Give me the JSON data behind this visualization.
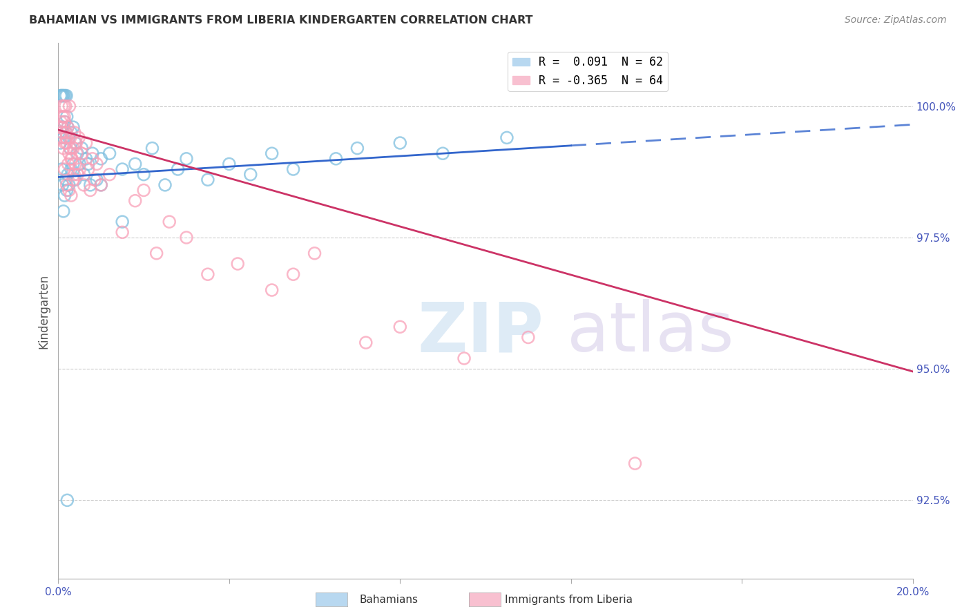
{
  "title": "BAHAMIAN VS IMMIGRANTS FROM LIBERIA KINDERGARTEN CORRELATION CHART",
  "source": "Source: ZipAtlas.com",
  "ylabel": "Kindergarten",
  "ytick_values": [
    92.5,
    95.0,
    97.5,
    100.0
  ],
  "xmin": 0.0,
  "xmax": 20.0,
  "ymin": 91.0,
  "ymax": 101.2,
  "legend_blue": "R =  0.091  N = 62",
  "legend_pink": "R = -0.365  N = 64",
  "blue_color": "#7fbfdf",
  "pink_color": "#f9a0b8",
  "trend_blue_color": "#3366cc",
  "trend_pink_color": "#cc3366",
  "background_color": "#ffffff",
  "blue_trend_x0": 0.0,
  "blue_trend_y0": 98.65,
  "blue_trend_x1": 20.0,
  "blue_trend_y1": 99.65,
  "blue_solid_x1": 12.0,
  "pink_trend_x0": 0.0,
  "pink_trend_y0": 99.55,
  "pink_trend_x1": 20.0,
  "pink_trend_y1": 94.95,
  "blue_scatter_x": [
    0.05,
    0.08,
    0.08,
    0.1,
    0.1,
    0.12,
    0.12,
    0.15,
    0.15,
    0.18,
    0.18,
    0.2,
    0.2,
    0.22,
    0.22,
    0.25,
    0.25,
    0.28,
    0.3,
    0.3,
    0.35,
    0.35,
    0.4,
    0.4,
    0.45,
    0.5,
    0.55,
    0.6,
    0.65,
    0.7,
    0.75,
    0.8,
    0.9,
    1.0,
    1.0,
    1.2,
    1.5,
    1.5,
    1.8,
    2.0,
    2.2,
    2.5,
    2.8,
    3.0,
    3.5,
    4.0,
    4.5,
    5.0,
    5.5,
    6.5,
    7.0,
    8.0,
    9.0,
    10.5,
    0.05,
    0.07,
    0.09,
    0.11,
    0.13,
    0.16,
    0.19,
    0.21
  ],
  "blue_scatter_y": [
    99.3,
    99.5,
    98.8,
    99.6,
    98.5,
    99.4,
    98.0,
    99.7,
    98.3,
    99.5,
    98.6,
    99.8,
    98.4,
    99.6,
    98.7,
    99.4,
    98.5,
    99.2,
    99.5,
    98.8,
    99.6,
    98.9,
    99.3,
    98.6,
    99.1,
    98.9,
    99.2,
    98.7,
    99.0,
    98.9,
    98.5,
    99.1,
    98.6,
    99.0,
    98.5,
    99.1,
    98.8,
    97.8,
    98.9,
    98.7,
    99.2,
    98.5,
    98.8,
    99.0,
    98.6,
    98.9,
    98.7,
    99.1,
    98.8,
    99.0,
    99.2,
    99.3,
    99.1,
    99.4,
    100.2,
    100.2,
    100.2,
    100.2,
    100.2,
    100.2,
    100.2,
    92.5
  ],
  "pink_scatter_x": [
    0.05,
    0.08,
    0.1,
    0.12,
    0.15,
    0.15,
    0.18,
    0.2,
    0.2,
    0.22,
    0.25,
    0.25,
    0.28,
    0.3,
    0.3,
    0.35,
    0.35,
    0.38,
    0.4,
    0.42,
    0.45,
    0.48,
    0.5,
    0.55,
    0.6,
    0.65,
    0.7,
    0.75,
    0.8,
    0.85,
    0.9,
    1.0,
    1.2,
    1.5,
    1.8,
    2.0,
    2.3,
    2.6,
    3.0,
    3.5,
    4.2,
    5.0,
    5.5,
    6.0,
    7.2,
    8.0,
    9.5,
    11.0,
    13.5,
    0.06,
    0.09,
    0.11,
    0.14,
    0.16,
    0.19,
    0.23,
    0.27,
    0.32,
    0.37,
    0.43,
    0.08,
    0.13,
    0.17,
    0.26
  ],
  "pink_scatter_y": [
    99.6,
    99.4,
    99.8,
    99.2,
    99.7,
    98.8,
    99.5,
    99.3,
    98.5,
    99.6,
    99.1,
    98.4,
    99.4,
    99.0,
    98.3,
    99.2,
    98.6,
    99.5,
    98.9,
    99.3,
    98.7,
    99.4,
    98.8,
    99.1,
    98.5,
    99.3,
    98.8,
    98.4,
    99.0,
    98.6,
    98.9,
    98.5,
    98.7,
    97.6,
    98.2,
    98.4,
    97.2,
    97.8,
    97.5,
    96.8,
    97.0,
    96.5,
    96.8,
    97.2,
    95.5,
    95.8,
    95.2,
    95.6,
    93.2,
    99.7,
    99.5,
    99.6,
    99.8,
    99.3,
    99.4,
    98.9,
    99.2,
    99.0,
    98.7,
    99.1,
    100.0,
    100.0,
    100.0,
    100.0
  ]
}
